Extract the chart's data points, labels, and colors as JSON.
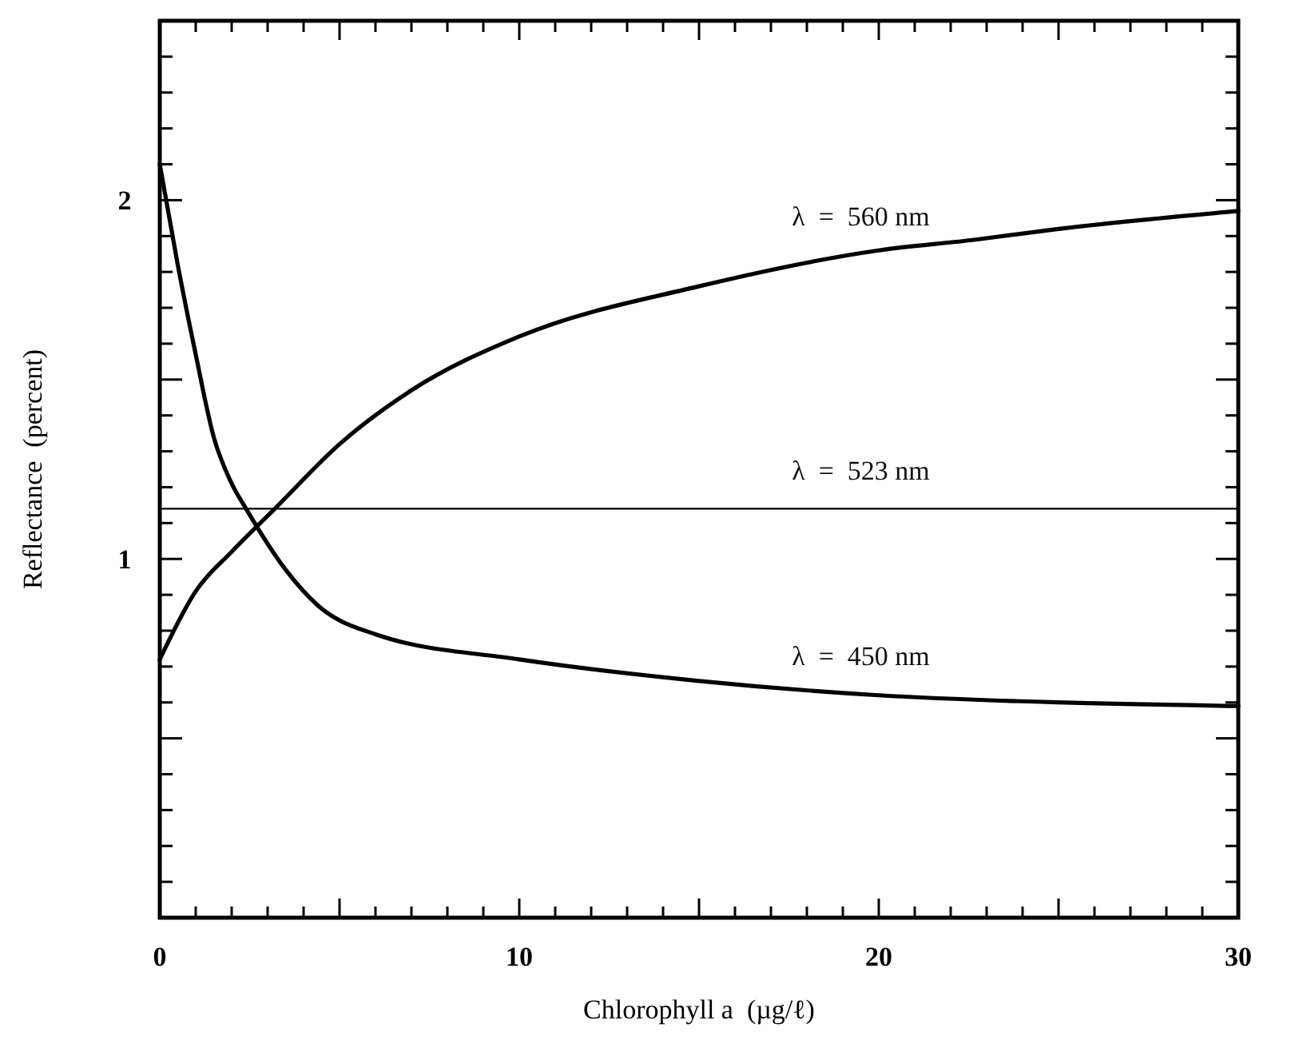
{
  "chart_data": {
    "type": "line",
    "xlabel": "Chlorophyll a  (µg/ℓ)",
    "ylabel": "Reflectance  (percent)",
    "xlim": [
      0,
      30
    ],
    "ylim": [
      0,
      2.5
    ],
    "xticks": [
      0,
      10,
      20,
      30
    ],
    "yticks": [
      {
        "value": 0.1,
        "label": null
      },
      {
        "value": 0.2,
        "label": null
      },
      {
        "value": 0.3,
        "label": null
      },
      {
        "value": 0.4,
        "label": null
      },
      {
        "value": 0.5,
        "label": null
      },
      {
        "value": 0.6,
        "label": null
      },
      {
        "value": 0.7,
        "label": null
      },
      {
        "value": 0.8,
        "label": null
      },
      {
        "value": 0.9,
        "label": null
      },
      1,
      {
        "value": 1.1,
        "label": null
      },
      {
        "value": 1.2,
        "label": null
      },
      {
        "value": 1.3,
        "label": null
      },
      {
        "value": 1.4,
        "label": null
      },
      {
        "value": 1.5,
        "label": null
      },
      {
        "value": 1.6,
        "label": null
      },
      {
        "value": 1.7,
        "label": null
      },
      {
        "value": 1.8,
        "label": null
      },
      {
        "value": 1.9,
        "label": null
      },
      2,
      {
        "value": 2.1,
        "label": null
      },
      {
        "value": 2.2,
        "label": null
      },
      {
        "value": 2.3,
        "label": null
      },
      {
        "value": 2.4,
        "label": null
      }
    ],
    "grid": false,
    "marker": "none",
    "line_style": "solid",
    "series": [
      {
        "name": "λ  =  560 nm",
        "color": "#000000",
        "x": [
          0,
          1,
          2,
          3.2,
          5,
          7,
          10,
          15,
          20,
          22.7,
          25,
          30
        ],
        "values": [
          0.72,
          0.91,
          1.02,
          1.14,
          1.32,
          1.47,
          1.62,
          1.76,
          1.86,
          1.89,
          1.92,
          1.97
        ]
      },
      {
        "name": "λ  =  523 nm",
        "color": "#000000",
        "x": [
          0,
          30
        ],
        "values": [
          1.14,
          1.14
        ]
      },
      {
        "name": "λ  =  450 nm",
        "color": "#000000",
        "x": [
          0,
          0.5,
          1,
          1.5,
          2,
          2.4,
          3.5,
          4.4,
          6,
          10,
          15,
          20,
          25,
          30
        ],
        "values": [
          2.1,
          1.82,
          1.57,
          1.34,
          1.21,
          1.14,
          0.97,
          0.87,
          0.79,
          0.72,
          0.66,
          0.62,
          0.6,
          0.59
        ]
      }
    ]
  }
}
